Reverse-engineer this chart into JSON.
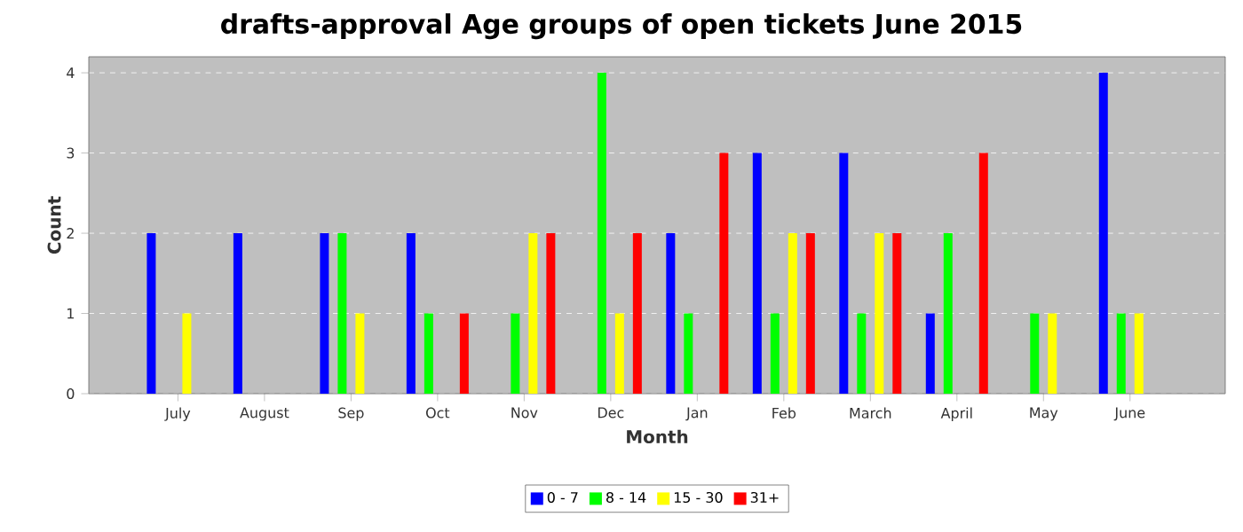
{
  "chart_data": {
    "type": "bar",
    "title": "drafts-approval Age groups of open tickets June 2015",
    "xlabel": "Month",
    "ylabel": "Count",
    "categories": [
      "July",
      "August",
      "Sep",
      "Oct",
      "Nov",
      "Dec",
      "Jan",
      "Feb",
      "March",
      "April",
      "May",
      "June"
    ],
    "series": [
      {
        "name": "0 - 7",
        "color": "#0000ff",
        "values": [
          2,
          2,
          2,
          2,
          0,
          0,
          2,
          3,
          3,
          1,
          0,
          4
        ]
      },
      {
        "name": "8 - 14",
        "color": "#00ff00",
        "values": [
          0,
          0,
          2,
          1,
          1,
          4,
          1,
          1,
          1,
          2,
          1,
          1
        ]
      },
      {
        "name": "15 - 30",
        "color": "#ffff00",
        "values": [
          1,
          0,
          1,
          0,
          2,
          1,
          0,
          2,
          2,
          0,
          1,
          1
        ]
      },
      {
        "name": "31+",
        "color": "#ff0000",
        "values": [
          0,
          0,
          0,
          1,
          2,
          2,
          3,
          2,
          2,
          3,
          0,
          0
        ]
      }
    ],
    "ylim": [
      0,
      4.2
    ],
    "yticks": [
      0,
      1,
      2,
      3,
      4
    ],
    "grid": "y",
    "legend": "bottom"
  }
}
